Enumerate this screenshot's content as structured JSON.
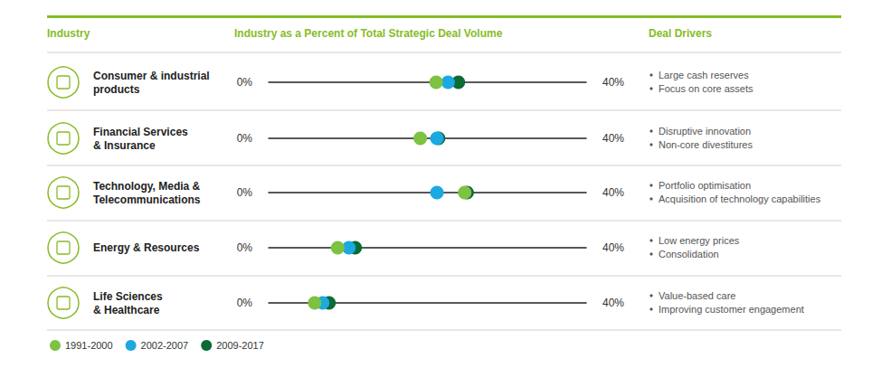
{
  "chart_data": {
    "type": "dot",
    "headers": {
      "industry": "Industry",
      "share": "Industry as a Percent of Total Strategic Deal Volume",
      "drivers": "Deal Drivers"
    },
    "categories": [
      "Consumer & industrial\nproducts",
      "Financial Services\n& Insurance",
      "Technology, Media &\nTelecommunications",
      "Energy & Resources",
      "Life Sciences\n& Healthcare"
    ],
    "drivers": [
      [
        "Large cash reserves",
        "Focus on core assets"
      ],
      [
        "Disruptive innovation",
        "Non-core divestitures"
      ],
      [
        "Portfolio optimisation",
        "Acquisition of technology capabilities"
      ],
      [
        "Low energy prices",
        "Consolidation"
      ],
      [
        "Value-based care",
        "Improving customer engagement"
      ]
    ],
    "series": [
      {
        "name": "1991-2000",
        "color": "#7dc242",
        "values": [
          21.1,
          19.1,
          24.7,
          8.7,
          5.8
        ]
      },
      {
        "name": "2002-2007",
        "color": "#1ba9e1",
        "values": [
          22.6,
          21.2,
          21.2,
          10.1,
          6.8
        ]
      },
      {
        "name": "2009-2017",
        "color": "#0b6b35",
        "values": [
          23.9,
          21.4,
          25.0,
          10.9,
          7.6
        ]
      }
    ],
    "xlim": [
      0,
      40
    ],
    "xticks": [
      {
        "value": 0,
        "label": "0%"
      },
      {
        "value": 40,
        "label": "40%"
      }
    ],
    "legend": "bottom-left"
  }
}
